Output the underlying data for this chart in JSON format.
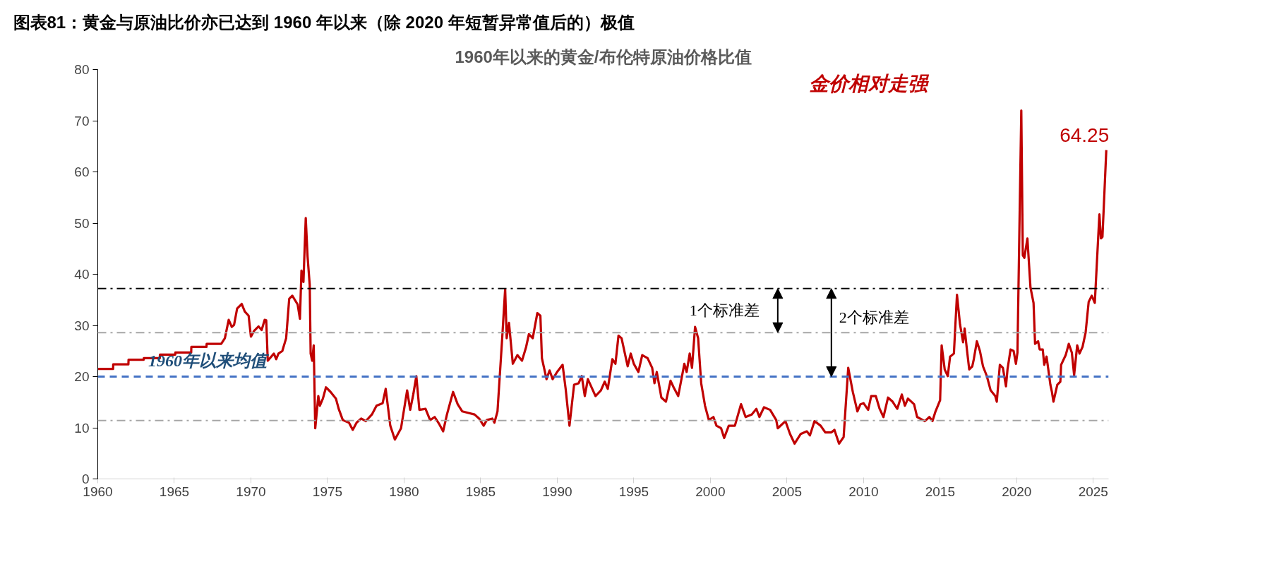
{
  "chart_data": {
    "type": "line",
    "title": "图表81：黄金与原油比价亦已达到 1960 年以来（除 2020 年短暂异常值后的）极值",
    "subtitle": "1960年以来的黄金/布伦特原油价格比值",
    "x": [
      1960.0,
      1961.0,
      1961.01,
      1962.0,
      1962.01,
      1963.0,
      1963.01,
      1964.05,
      1964.06,
      1965.06,
      1965.07,
      1966.1,
      1966.11,
      1967.1,
      1967.11,
      1968.06,
      1968.3,
      1968.55,
      1968.75,
      1968.9,
      1969.1,
      1969.4,
      1969.6,
      1969.85,
      1970.0,
      1970.2,
      1970.5,
      1970.7,
      1970.9,
      1971.0,
      1971.1,
      1971.5,
      1971.65,
      1971.8,
      1972.05,
      1972.3,
      1972.5,
      1972.7,
      1973.05,
      1973.2,
      1973.3,
      1973.43,
      1973.58,
      1973.7,
      1973.84,
      1973.9,
      1974.0,
      1974.1,
      1974.2,
      1974.4,
      1974.5,
      1974.7,
      1974.9,
      1975.2,
      1975.55,
      1975.73,
      1976.0,
      1976.4,
      1976.65,
      1976.9,
      1977.2,
      1977.5,
      1977.9,
      1978.2,
      1978.6,
      1978.8,
      1979.1,
      1979.4,
      1979.8,
      1980.2,
      1980.4,
      1980.6,
      1980.8,
      1981.0,
      1981.4,
      1981.7,
      1982.0,
      1982.3,
      1982.55,
      1982.8,
      1983.2,
      1983.5,
      1983.8,
      1984.2,
      1984.6,
      1984.9,
      1985.2,
      1985.4,
      1985.76,
      1985.9,
      1986.1,
      1986.4,
      1986.6,
      1986.7,
      1986.85,
      1987.1,
      1987.4,
      1987.7,
      1987.97,
      1988.15,
      1988.4,
      1988.7,
      1988.9,
      1989.0,
      1989.3,
      1989.5,
      1989.7,
      1989.99,
      1990.35,
      1990.55,
      1990.8,
      1991.1,
      1991.4,
      1991.6,
      1991.8,
      1992.0,
      1992.5,
      1992.85,
      1993.1,
      1993.3,
      1993.6,
      1993.8,
      1994.0,
      1994.2,
      1994.6,
      1994.8,
      1995.0,
      1995.3,
      1995.55,
      1995.9,
      1996.2,
      1996.35,
      1996.5,
      1996.8,
      1997.1,
      1997.4,
      1997.6,
      1997.9,
      1998.3,
      1998.45,
      1998.65,
      1998.8,
      1999.0,
      1999.2,
      1999.4,
      1999.65,
      1999.9,
      2000.2,
      2000.4,
      2000.7,
      2000.9,
      2001.2,
      2001.6,
      2002.0,
      2002.3,
      2002.7,
      2003.0,
      2003.2,
      2003.5,
      2003.9,
      2004.3,
      2004.4,
      2004.9,
      2005.2,
      2005.5,
      2005.9,
      2006.3,
      2006.5,
      2006.8,
      2007.2,
      2007.5,
      2007.9,
      2008.1,
      2008.4,
      2008.7,
      2009.0,
      2009.3,
      2009.6,
      2009.8,
      2010.0,
      2010.3,
      2010.5,
      2010.8,
      2011.05,
      2011.3,
      2011.6,
      2011.9,
      2012.2,
      2012.5,
      2012.7,
      2012.9,
      2013.3,
      2013.5,
      2014.0,
      2014.3,
      2014.5,
      2014.7,
      2015.0,
      2015.1,
      2015.3,
      2015.5,
      2015.65,
      2015.9,
      2016.1,
      2016.3,
      2016.5,
      2016.6,
      2016.75,
      2016.9,
      2017.1,
      2017.2,
      2017.4,
      2017.6,
      2017.8,
      2018.05,
      2018.3,
      2018.6,
      2018.7,
      2018.9,
      2019.1,
      2019.3,
      2019.4,
      2019.6,
      2019.8,
      2019.95,
      2020.05,
      2020.3,
      2020.4,
      2020.5,
      2020.7,
      2020.9,
      2021.1,
      2021.2,
      2021.4,
      2021.5,
      2021.7,
      2021.8,
      2021.95,
      2022.2,
      2022.3,
      2022.4,
      2022.65,
      2022.85,
      2022.9,
      2023.2,
      2023.4,
      2023.6,
      2023.75,
      2023.95,
      2024.1,
      2024.3,
      2024.5,
      2024.7,
      2024.9,
      2025.1,
      2025.4,
      2025.5,
      2025.6,
      2025.85
    ],
    "series": [
      {
        "color": "#c00000",
        "values": [
          21.5,
          21.5,
          22.4,
          22.4,
          23.3,
          23.3,
          23.6,
          23.6,
          24.3,
          24.3,
          24.7,
          24.7,
          25.8,
          25.8,
          26.4,
          26.4,
          27.5,
          31.1,
          29.7,
          30.1,
          33.3,
          34.2,
          32.7,
          31.9,
          27.8,
          28.9,
          29.8,
          29.1,
          31.1,
          31.0,
          23.1,
          24.5,
          23.4,
          24.5,
          25.0,
          27.5,
          35.2,
          35.8,
          34.1,
          31.3,
          40.7,
          38.5,
          51.0,
          43.4,
          37.9,
          24.5,
          23.1,
          26.1,
          9.9,
          16.2,
          14.3,
          15.7,
          17.9,
          17.0,
          15.7,
          13.7,
          11.5,
          11.0,
          9.6,
          11.0,
          11.8,
          11.3,
          12.6,
          14.3,
          14.8,
          17.6,
          10.4,
          7.7,
          9.9,
          17.3,
          13.5,
          16.5,
          20.1,
          13.5,
          13.7,
          11.5,
          12.1,
          10.7,
          9.3,
          12.6,
          17.0,
          14.6,
          13.2,
          12.9,
          12.6,
          11.8,
          10.4,
          11.5,
          11.8,
          11.0,
          13.2,
          27.2,
          37.1,
          27.5,
          30.5,
          22.5,
          24.2,
          23.1,
          25.8,
          28.3,
          27.5,
          32.4,
          31.9,
          23.6,
          19.5,
          21.2,
          19.5,
          20.9,
          22.3,
          17.6,
          10.4,
          18.4,
          18.7,
          20.1,
          16.2,
          19.5,
          16.2,
          17.3,
          19.0,
          17.6,
          23.4,
          22.5,
          28.0,
          27.5,
          22.0,
          24.5,
          22.5,
          20.9,
          24.2,
          23.6,
          21.7,
          18.7,
          20.9,
          15.9,
          15.1,
          19.2,
          17.9,
          16.2,
          22.5,
          20.9,
          24.5,
          21.7,
          29.7,
          27.5,
          18.7,
          14.3,
          11.5,
          12.1,
          10.4,
          9.9,
          8.0,
          10.4,
          10.4,
          14.6,
          12.1,
          12.6,
          13.7,
          12.1,
          14.0,
          13.5,
          11.5,
          9.9,
          11.3,
          8.8,
          6.9,
          8.8,
          9.3,
          8.5,
          11.3,
          10.4,
          9.1,
          9.1,
          9.6,
          6.9,
          8.2,
          21.7,
          17.0,
          13.2,
          14.6,
          14.8,
          13.5,
          16.2,
          16.2,
          13.7,
          12.1,
          15.9,
          15.1,
          13.7,
          16.5,
          14.3,
          15.7,
          14.6,
          12.1,
          11.3,
          12.1,
          11.3,
          13.2,
          15.4,
          26.1,
          21.4,
          20.1,
          23.9,
          24.5,
          36.0,
          30.2,
          26.7,
          29.4,
          25.3,
          21.4,
          22.0,
          23.4,
          26.9,
          25.0,
          22.0,
          20.1,
          17.3,
          16.2,
          15.1,
          22.3,
          21.7,
          18.1,
          21.4,
          25.3,
          25.0,
          22.5,
          24.7,
          72.0,
          43.7,
          43.2,
          47.0,
          37.4,
          34.4,
          26.4,
          26.9,
          25.3,
          25.3,
          22.3,
          23.9,
          18.4,
          17.0,
          15.1,
          18.4,
          19.0,
          22.3,
          24.2,
          26.4,
          24.7,
          20.3,
          26.1,
          24.5,
          25.8,
          28.6,
          34.6,
          35.8,
          34.4,
          51.7,
          47.0,
          47.3,
          64.25
        ]
      }
    ],
    "value_labels": [
      null,
      null,
      null,
      null,
      null,
      null,
      null,
      null,
      null,
      null,
      null,
      null,
      null,
      null,
      null,
      null,
      null,
      null,
      null,
      null,
      null,
      null,
      null,
      null,
      null,
      null,
      null,
      null,
      null,
      null,
      null,
      null,
      null,
      null,
      null,
      null,
      null,
      null,
      null,
      null,
      null,
      null,
      null,
      null,
      null,
      null,
      null,
      null,
      null,
      null,
      null,
      null,
      null,
      null,
      null,
      null,
      null,
      null,
      null,
      null,
      null,
      null,
      null,
      null,
      null,
      null,
      null,
      null,
      null,
      null,
      null,
      null,
      null,
      null,
      null,
      null,
      null,
      null,
      null,
      null,
      null,
      null,
      null,
      null,
      null,
      null,
      null,
      null,
      null,
      null,
      null,
      null,
      null,
      null,
      null,
      null,
      null,
      null,
      null,
      null,
      null,
      null,
      null,
      null,
      null,
      null,
      null,
      null,
      null,
      null,
      null,
      null,
      null,
      null,
      null,
      null,
      null,
      null,
      null,
      null,
      null,
      null,
      null,
      null,
      null,
      null,
      null,
      null,
      null,
      null,
      null,
      null,
      null,
      null,
      null,
      null,
      null,
      null,
      null,
      null,
      null,
      null,
      null,
      null,
      null,
      null,
      null,
      null,
      null,
      null,
      null,
      null,
      null,
      null,
      null,
      null,
      null,
      null,
      null,
      null,
      null,
      null,
      null,
      null,
      null,
      null,
      null,
      null,
      null,
      null,
      null,
      null,
      null,
      null,
      null,
      null,
      null,
      null,
      null,
      null,
      null,
      null,
      null,
      null,
      null,
      null,
      null,
      null,
      null,
      null,
      null,
      null,
      null,
      null,
      null,
      null,
      null,
      null,
      null,
      null,
      null,
      null,
      null,
      null,
      null,
      null,
      null,
      null,
      null,
      null,
      null,
      null,
      null,
      null,
      null,
      null,
      null,
      null,
      null,
      null,
      null,
      null,
      null,
      null,
      null,
      null,
      null,
      null,
      null,
      null,
      null,
      null,
      null,
      null,
      null,
      null,
      null,
      null,
      null,
      null,
      null,
      null,
      null,
      null,
      null,
      null,
      null,
      null,
      null,
      null,
      null,
      null,
      null,
      null,
      null,
      null,
      null,
      null,
      null,
      null,
      null,
      null,
      null,
      null,
      "64.25"
    ],
    "xlim": [
      1960,
      2026
    ],
    "xticks": [
      1960,
      1965,
      1970,
      1975,
      1980,
      1985,
      1990,
      1995,
      2000,
      2005,
      2010,
      2015,
      2020,
      2025
    ],
    "ylim": [
      0,
      80
    ],
    "yticks": [
      0,
      10,
      20,
      30,
      40,
      50,
      60,
      70,
      80
    ],
    "ref_lines": [
      {
        "axis": "y",
        "value": 20,
        "label": "1960年以来均值",
        "color": "#4472c4",
        "line_style": "dashed"
      },
      {
        "axis": "y",
        "value": 37.2,
        "label": null,
        "color": "#000000",
        "line_style": "dashdot"
      },
      {
        "axis": "y",
        "value": 28.6,
        "label": null,
        "color": "#a6a6a6",
        "line_style": "dashdot"
      },
      {
        "axis": "y",
        "value": 11.4,
        "label": null,
        "color": "#a6a6a6",
        "line_style": "dashdot"
      }
    ],
    "annotations": [
      "1个标准差",
      {
        "text": "2个标准差",
        "x": 2007.9,
        "y": 20
      },
      "金价相对走强"
    ],
    "grid": false
  }
}
